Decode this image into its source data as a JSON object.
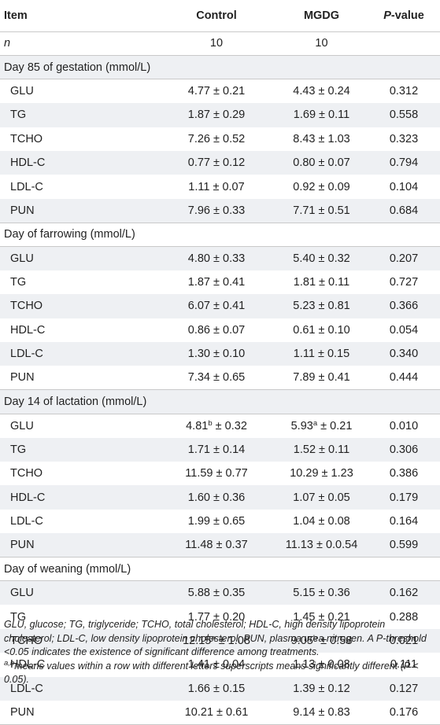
{
  "header": {
    "item": "Item",
    "control": "Control",
    "mgdg": "MGDG",
    "pvalue": "P-value"
  },
  "n_row": {
    "label": "n",
    "control": "10",
    "mgdg": "10",
    "p": ""
  },
  "sections": [
    {
      "title": "Day 85 of gestation (mmol/L)",
      "rows": [
        {
          "label": "GLU",
          "control": "4.77 ± 0.21",
          "mgdg": "4.43 ± 0.24",
          "p": "0.312"
        },
        {
          "label": "TG",
          "control": "1.87 ± 0.29",
          "mgdg": "1.69 ± 0.11",
          "p": "0.558"
        },
        {
          "label": "TCHO",
          "control": "7.26 ± 0.52",
          "mgdg": "8.43 ± 1.03",
          "p": "0.323"
        },
        {
          "label": "HDL-C",
          "control": "0.77 ± 0.12",
          "mgdg": "0.80 ± 0.07",
          "p": "0.794"
        },
        {
          "label": "LDL-C",
          "control": "1.11 ± 0.07",
          "mgdg": "0.92 ± 0.09",
          "p": "0.104"
        },
        {
          "label": "PUN",
          "control": "7.96 ± 0.33",
          "mgdg": "7.71 ± 0.51",
          "p": "0.684"
        }
      ]
    },
    {
      "title": "Day of farrowing (mmol/L)",
      "rows": [
        {
          "label": "GLU",
          "control": "4.80 ± 0.33",
          "mgdg": "5.40 ± 0.32",
          "p": "0.207"
        },
        {
          "label": "TG",
          "control": "1.87 ± 0.41",
          "mgdg": "1.81 ± 0.11",
          "p": "0.727"
        },
        {
          "label": "TCHO",
          "control": "6.07 ± 0.41",
          "mgdg": "5.23 ± 0.81",
          "p": "0.366"
        },
        {
          "label": "HDL-C",
          "control": "0.86 ± 0.07",
          "mgdg": "0.61 ± 0.10",
          "p": "0.054"
        },
        {
          "label": "LDL-C",
          "control": "1.30 ± 0.10",
          "mgdg": "1.11 ± 0.15",
          "p": "0.340"
        },
        {
          "label": "PUN",
          "control": "7.34 ± 0.65",
          "mgdg": "7.89 ± 0.41",
          "p": "0.444"
        }
      ]
    },
    {
      "title": "Day 14 of lactation (mmol/L)",
      "rows": [
        {
          "label": "GLU",
          "control": "4.81",
          "control_sup": "b",
          "control_rest": " ± 0.32",
          "mgdg": "5.93",
          "mgdg_sup": "a",
          "mgdg_rest": " ± 0.21",
          "p": "0.010"
        },
        {
          "label": "TG",
          "control": "1.71 ± 0.14",
          "mgdg": "1.52 ± 0.11",
          "p": "0.306"
        },
        {
          "label": "TCHO",
          "control": "11.59 ± 0.77",
          "mgdg": "10.29 ± 1.23",
          "p": "0.386"
        },
        {
          "label": "HDL-C",
          "control": "1.60 ± 0.36",
          "mgdg": "1.07 ± 0.05",
          "p": "0.179"
        },
        {
          "label": "LDL-C",
          "control": "1.99 ± 0.65",
          "mgdg": "1.04 ± 0.08",
          "p": "0.164"
        },
        {
          "label": "PUN",
          "control": "11.48 ± 0.37",
          "mgdg": "11.13 ± 0.0.54",
          "p": "0.599"
        }
      ]
    },
    {
      "title": "Day of weaning (mmol/L)",
      "rows": [
        {
          "label": "GLU",
          "control": "5.88 ± 0.35",
          "mgdg": "5.15 ± 0.36",
          "p": "0.162"
        },
        {
          "label": "TG",
          "control": "1.77 ± 0.20",
          "mgdg": "1.45 ± 0.21",
          "p": "0.288"
        },
        {
          "label": "TCHO",
          "control": "12.15",
          "control_sup": "a",
          "control_rest": " ± 1.08",
          "mgdg": "9.05",
          "mgdg_sup": "b",
          "mgdg_rest": " ± 0.58",
          "p": "0.021"
        },
        {
          "label": "HDL-C",
          "control": "1.41 ± 0.04",
          "mgdg": "1.13 ± 0.08",
          "p": "0.111"
        },
        {
          "label": "LDL-C",
          "control": "1.66 ± 0.15",
          "mgdg": "1.39 ± 0.12",
          "p": "0.127"
        },
        {
          "label": "PUN",
          "control": "10.21 ± 0.61",
          "mgdg": "9.14 ± 0.83",
          "p": "0.176"
        }
      ]
    }
  ],
  "footnotes": {
    "abbrev": "GLU, glucose; TG, triglyceride; TCHO, total cholesterol; HDL-C, high density lipoprotein cholesterol; LDL-C, low density lipoprotein cholesterol; PUN, plasma urea nitrogen. A P-threshold <0.05 indicates the existence of significant difference among treatments.",
    "sup_mark": "a,b",
    "sup_text": "means values within a row with different letters superscripts means significantly different (P < 0.05)."
  }
}
